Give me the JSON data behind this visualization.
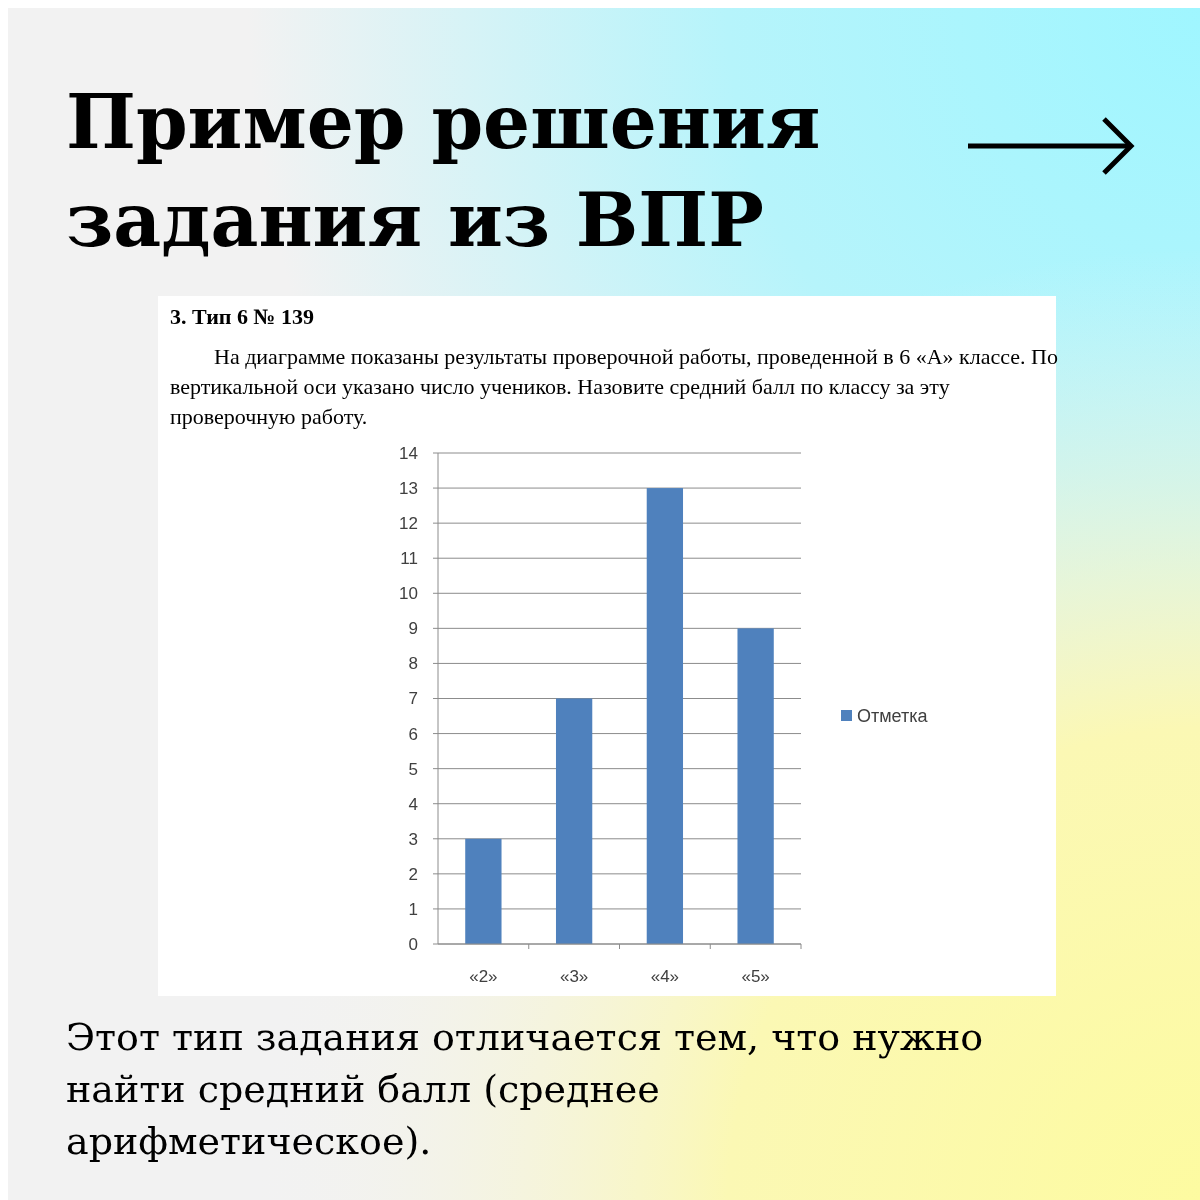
{
  "chart_data": {
    "type": "bar",
    "title": "Пример решения задания из ВПР",
    "subtitle": "3. Тип 6 № 139",
    "annotations": [
      "На диаграмме показаны результаты проверочной работы, проведенной в 6 «А» классе. По вертикальной оси указано число учеников. Назовите средний балл по классу за эту проверочную работу.",
      "Этот тип задания отличается тем, что нужно найти средний балл (среднее арифметическое)."
    ],
    "categories": [
      "«2»",
      "«3»",
      "«4»",
      "«5»"
    ],
    "series": [
      {
        "name": "Отметка",
        "color": "#4f81bd",
        "values": [
          3,
          7,
          13,
          9
        ]
      }
    ],
    "ylim": [
      0,
      14
    ],
    "yticks": [
      0,
      1,
      2,
      3,
      4,
      5,
      6,
      7,
      8,
      9,
      10,
      11,
      12,
      13,
      14
    ],
    "grid": "y",
    "legend": "right"
  }
}
